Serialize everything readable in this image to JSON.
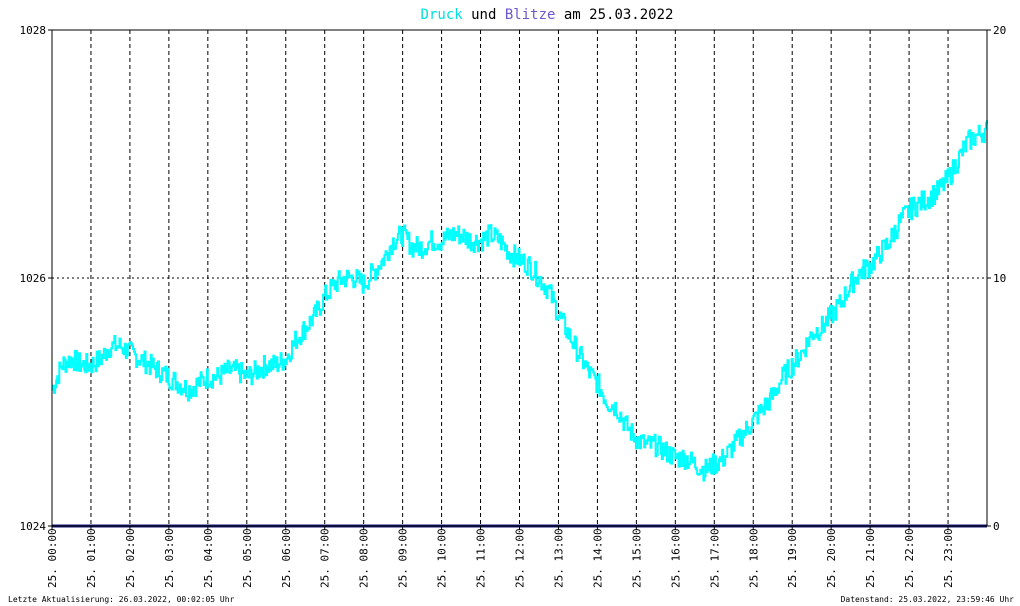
{
  "chart_data": {
    "type": "line",
    "title": {
      "part1": "Druck",
      "part2": " und ",
      "part3": "Blitze",
      "part4": " am 25.03.2022"
    },
    "colors": {
      "druck": "#00ffff",
      "blitze": "#1a1a7a",
      "title_druck": "#00e0e0",
      "title_blitze": "#6a5acd",
      "grid": "#000000",
      "border": "#000000"
    },
    "y_left": {
      "min": 1024,
      "max": 1028,
      "ticks": [
        "1024",
        "1026",
        "1028"
      ]
    },
    "y_right": {
      "min": 0,
      "max": 20,
      "ticks": [
        "0",
        "10",
        "20"
      ]
    },
    "x_range_hours": [
      0,
      24
    ],
    "x_ticks": [
      "25. 00:00",
      "25. 01:00",
      "25. 02:00",
      "25. 03:00",
      "25. 04:00",
      "25. 05:00",
      "25. 06:00",
      "25. 07:00",
      "25. 08:00",
      "25. 09:00",
      "25. 10:00",
      "25. 11:00",
      "25. 12:00",
      "25. 13:00",
      "25. 14:00",
      "25. 15:00",
      "25. 16:00",
      "25. 17:00",
      "25. 18:00",
      "25. 19:00",
      "25. 20:00",
      "25. 21:00",
      "25. 22:00",
      "25. 23:00"
    ],
    "grid": true,
    "series": [
      {
        "name": "Druck",
        "axis": "left",
        "x": [
          0,
          0.25,
          0.5,
          0.75,
          1,
          1.25,
          1.5,
          1.75,
          2,
          2.25,
          2.5,
          2.75,
          3,
          3.25,
          3.5,
          3.75,
          4,
          4.25,
          4.5,
          4.75,
          5,
          5.25,
          5.5,
          5.75,
          6,
          6.25,
          6.5,
          6.75,
          7,
          7.25,
          7.5,
          7.75,
          8,
          8.25,
          8.5,
          8.75,
          9,
          9.25,
          9.5,
          9.75,
          10,
          10.25,
          10.5,
          10.75,
          11,
          11.25,
          11.5,
          11.75,
          12,
          12.25,
          12.5,
          12.75,
          13,
          13.25,
          13.5,
          13.75,
          14,
          14.25,
          14.5,
          14.75,
          15,
          15.25,
          15.5,
          15.75,
          16,
          16.25,
          16.5,
          16.75,
          17,
          17.25,
          17.5,
          17.75,
          18,
          18.25,
          18.5,
          18.75,
          19,
          19.25,
          19.5,
          19.75,
          20,
          20.25,
          20.5,
          20.75,
          21,
          21.25,
          21.5,
          21.75,
          22,
          22.25,
          22.5,
          22.75,
          23,
          23.25,
          23.5,
          23.75,
          24
        ],
        "values": [
          1025.1,
          1025.3,
          1025.35,
          1025.3,
          1025.3,
          1025.35,
          1025.45,
          1025.45,
          1025.4,
          1025.35,
          1025.3,
          1025.25,
          1025.2,
          1025.15,
          1025.1,
          1025.15,
          1025.2,
          1025.2,
          1025.25,
          1025.25,
          1025.2,
          1025.25,
          1025.3,
          1025.3,
          1025.35,
          1025.5,
          1025.6,
          1025.7,
          1025.85,
          1025.95,
          1026.0,
          1026.0,
          1025.95,
          1026.05,
          1026.15,
          1026.3,
          1026.35,
          1026.25,
          1026.25,
          1026.3,
          1026.3,
          1026.35,
          1026.35,
          1026.3,
          1026.3,
          1026.35,
          1026.3,
          1026.2,
          1026.15,
          1026.1,
          1026.0,
          1025.9,
          1025.7,
          1025.55,
          1025.4,
          1025.25,
          1025.15,
          1025.0,
          1024.95,
          1024.8,
          1024.7,
          1024.65,
          1024.65,
          1024.6,
          1024.55,
          1024.55,
          1024.5,
          1024.45,
          1024.5,
          1024.55,
          1024.65,
          1024.75,
          1024.85,
          1024.95,
          1025.05,
          1025.2,
          1025.3,
          1025.4,
          1025.55,
          1025.6,
          1025.7,
          1025.8,
          1025.95,
          1026.05,
          1026.1,
          1026.2,
          1026.3,
          1026.45,
          1026.55,
          1026.6,
          1026.65,
          1026.7,
          1026.8,
          1026.95,
          1027.1,
          1027.15,
          1027.2
        ]
      },
      {
        "name": "Blitze",
        "axis": "right",
        "x": [
          0,
          24
        ],
        "values": [
          0,
          0
        ]
      }
    ]
  },
  "footer": {
    "left": "Letzte Aktualisierung: 26.03.2022, 00:02:05 Uhr",
    "right": "Datenstand: 25.03.2022, 23:59:46 Uhr"
  }
}
